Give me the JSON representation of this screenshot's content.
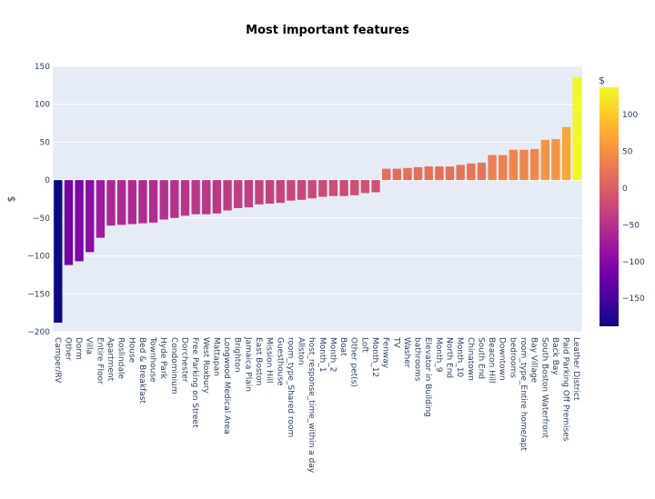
{
  "chart_data": {
    "type": "bar",
    "title": "Most important features",
    "xlabel": "",
    "ylabel": "$",
    "ylim": [
      -200,
      150
    ],
    "yticks": [
      150,
      100,
      50,
      0,
      -50,
      -100,
      -150,
      -200
    ],
    "grid": true,
    "colorbar": {
      "title": "$",
      "range": [
        -188,
        137
      ],
      "ticks": [
        100,
        50,
        0,
        -50,
        -100,
        -150
      ],
      "colorscale": "plasma"
    },
    "categories": [
      "Camper/RV",
      "Other",
      "Dorm",
      "Villa",
      "Entire Floor",
      "Apartment",
      "Roslindale",
      "House",
      "Bed & Breakfast",
      "Townhouse",
      "Hyde Park",
      "Condominium",
      "Dorchester",
      "Free Parking on Street",
      "West Roxbury",
      "Mattapan",
      "Longwood Medical Area",
      "Brighton",
      "Jamaica Plain",
      "East Boston",
      "Mission Hill",
      "Guesthouse",
      "room_type_Shared room",
      "Allston",
      "host_response_time_within a day",
      "Month_1",
      "Month_2",
      "Boat",
      "Other pet(s)",
      "Loft",
      "Month_12",
      "Fenway",
      "TV",
      "Washer",
      "bathrooms",
      "Elevator in Building",
      "Month_9",
      "North End",
      "Month_10",
      "Chinatown",
      "South End",
      "Beacon Hill",
      "Downtown",
      "bedrooms",
      "room_type_Entire home/apt",
      "Bay Village",
      "South Boston Waterfront",
      "Back Bay",
      "Paid Parking Off Premises",
      "Leather District"
    ],
    "values": [
      -188,
      -112,
      -107,
      -95,
      -76,
      -60,
      -59,
      -58,
      -57,
      -56,
      -52,
      -50,
      -47,
      -45,
      -45,
      -44,
      -40,
      -37,
      -36,
      -32,
      -31,
      -30,
      -27,
      -26,
      -24,
      -22,
      -21,
      -21,
      -20,
      -17,
      -16,
      15,
      15,
      16,
      17,
      18,
      18,
      18,
      20,
      22,
      23,
      33,
      33,
      40,
      40,
      41,
      53,
      54,
      70,
      136
    ]
  }
}
